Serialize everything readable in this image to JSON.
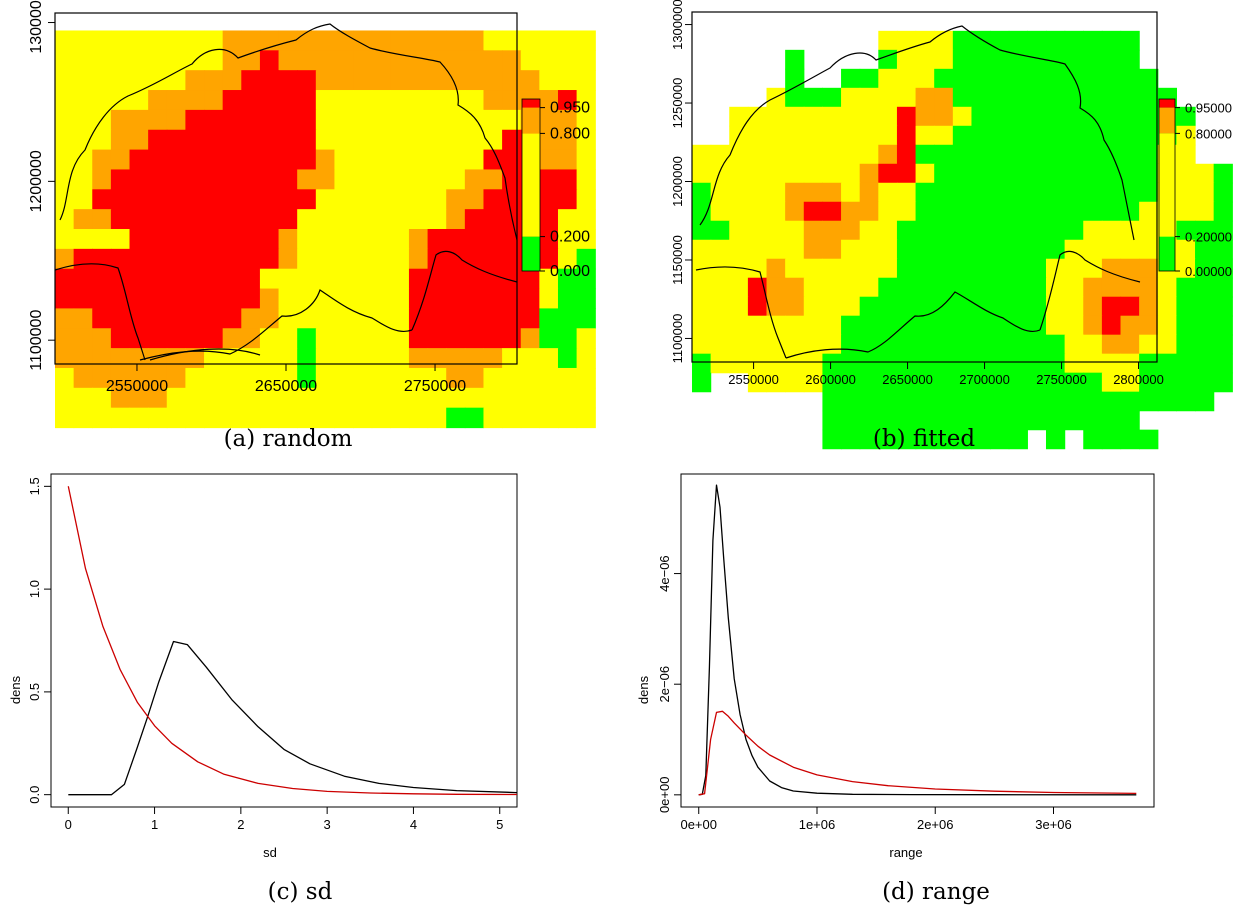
{
  "chart_data": [
    {
      "panel": "a",
      "type": "heatmap",
      "caption": "(a) random",
      "x_ticks": [
        "2550000",
        "2650000",
        "2750000"
      ],
      "y_ticks": [
        "1100000",
        "1200000",
        "1300000"
      ],
      "x_tick_values": [
        2550000,
        2650000,
        2750000
      ],
      "y_tick_values": [
        1100000,
        1200000,
        1300000
      ],
      "xlim": [
        2495000,
        2805000
      ],
      "ylim": [
        1085000,
        1306000
      ],
      "legend": {
        "breaks": [
          0.0,
          0.2,
          0.8,
          0.95,
          1.0
        ],
        "labels": [
          "0.000",
          "0.200",
          "0.800",
          "0.950"
        ],
        "colors": [
          "#00ff00",
          "#ffff00",
          "#ffa500",
          "#ff0000"
        ]
      },
      "grid": {
        "x0": 2495000,
        "y_top": 1295000,
        "cell": 12500,
        "nodata": ".",
        "rows": [
          "YYYYYYYYYOOOOOOOOOOOOOOYYYYYY",
          "YYYYYYYYYOOROOOOOOOOOOOOOYYYY",
          "YYYYYYYOOORRRROOOOOOOOOOOOYYY",
          "YYYYYOOOORRRRRYYYYYYYYYOOOORY",
          "YYYOOOORRRRRRRYYYYYYYYYYYOOOY",
          "YYYOORRRRRRRRRYYYYYYYYYYRROOY",
          "YYOORRRRRRRRRROYYYYYYYYRRROOY",
          "YYORRRRRRRRRROOYYYYYYYOORRRRY",
          "YYRRRRRRRRRRRRYYYYYYYOORRRRRY",
          "YOORRRRRRRRRRYYYYYYYYORRRRRYY",
          "YYYYRRRRRRRROYYYYYYORRRRRRRYY",
          "ORRRRRRRRRRROYYYYYYORRRRRRRYG",
          "RRRRRRRRRRRYYYYYYYYRRRRRRRYGG",
          "RRRRRRRRRRROYYYYYYYRRRRRRRYGG",
          "OORRRRRRRROOYYYYYYYRRRRRRRGGG",
          "OOORRRRRROOYYGYYYYYRRRRRROGGY",
          "OOOOOOOOYYYYYGYYYYYOOOOOYYYGY",
          "YOOOOOOYYYYYYGYYYYYYYOOYYYYYY",
          "YYYOOOYYYYYYYYYYYYYYYYYYYYYYY",
          "YYYYYYYYYYYYYYYYYYYYYGGYYYYYY"
        ]
      }
    },
    {
      "panel": "b",
      "type": "heatmap",
      "caption": "(b) fitted",
      "x_ticks": [
        "2550000",
        "2600000",
        "2650000",
        "2700000",
        "2750000",
        "2800000"
      ],
      "y_ticks": [
        "1100000",
        "1150000",
        "1200000",
        "1250000",
        "1300000"
      ],
      "x_tick_values": [
        2550000,
        2600000,
        2650000,
        2700000,
        2750000,
        2800000
      ],
      "y_tick_values": [
        1100000,
        1150000,
        1200000,
        1250000,
        1300000
      ],
      "xlim": [
        2510000,
        2812000
      ],
      "ylim": [
        1085000,
        1308000
      ],
      "legend": {
        "breaks": [
          0.0,
          0.2,
          0.8,
          0.95,
          1.0
        ],
        "labels": [
          "0.00000",
          "0.20000",
          "0.80000",
          "0.95000"
        ],
        "colors": [
          "#00ff00",
          "#ffff00",
          "#ffa500",
          "#ff0000"
        ]
      },
      "grid": {
        "x0": 2510000,
        "y_top": 1296000,
        "cell": 12100,
        "nodata": ".",
        "rows": [
          "..........YYYYGGGGGGGGGG.....",
          ".....G....GYYYGGGGGGGGGG.....",
          ".....G..GGYYYGGGGGGGGGGGG....",
          "....YGGGYYYYOOGGGGGGGGGGGG...",
          "..YYYYYYYYYROOYGGGGGGGGGGGG..",
          "..YYYYYYYYYRYYGGGGGGGGGGGGY..",
          "YYYYYYYYYYORGGGGGGGGGGGGGYY..",
          "YYYYYYYYYORRYGGGGGGGGGGGGYYYG",
          "GYYYYOOOYOYYGGGGGGGGGGGGGYYYG",
          "GYYYYORROOYYGGGGGGGGGGGGYYYYG",
          "GGYYYYOOOYYGGGGGGGGGGYYYYYGGG",
          "YYYYYYOOYYYGGGGGGGGGYYYYYYYGG",
          "YYYYOYYYYYYGGGGGGGGYYYOOOYYGG",
          "YYYROOYYYYGGGGGGGGGYYOOOOYGGG",
          "YYYROOYYYGGGGGGGGGGYYORROYGGG",
          "YYYYYYYYGGGGGGGGGGGYYOROOYGGG",
          "YYYYYYYYGGGGGGGGGGGGYYOOYYGGG",
          "GYYYYYYGGGGGGGGGGGGGYYYYGGGGG",
          "G..YYYYGGGGGGGGGGGGGGGYYGGGGG",
          ".......GGGGGGGGGGGGGGGGGGGGG.",
          ".......GGGGGGGGGGGGGGGGG.....",
          ".......GGGGGGGGGGG.G.GGGG...."
        ]
      }
    },
    {
      "panel": "c",
      "type": "line",
      "caption": "(c) sd",
      "xlabel": "sd",
      "ylabel": "dens",
      "xlim": [
        -0.2,
        5.2
      ],
      "ylim": [
        -0.06,
        1.56
      ],
      "x_ticks": [
        0,
        1,
        2,
        3,
        4,
        5
      ],
      "y_ticks": [
        0.0,
        0.5,
        1.0,
        1.5
      ],
      "x_tick_labels": [
        "0",
        "1",
        "2",
        "3",
        "4",
        "5"
      ],
      "y_tick_labels": [
        "0.0",
        "0.5",
        "1.0",
        "1.5"
      ],
      "series": [
        {
          "color": "#000000",
          "x": [
            0,
            0.5,
            0.65,
            0.8,
            0.92,
            1.05,
            1.22,
            1.38,
            1.6,
            1.9,
            2.2,
            2.5,
            2.8,
            3.2,
            3.6,
            4.0,
            4.5,
            5.2
          ],
          "y": [
            0,
            0.0,
            0.05,
            0.23,
            0.38,
            0.55,
            0.745,
            0.73,
            0.62,
            0.46,
            0.33,
            0.22,
            0.15,
            0.09,
            0.055,
            0.035,
            0.02,
            0.01
          ]
        },
        {
          "color": "#cc0000",
          "x": [
            0,
            0.2,
            0.4,
            0.6,
            0.8,
            1.0,
            1.2,
            1.5,
            1.8,
            2.2,
            2.6,
            3.0,
            3.5,
            4.0,
            4.5,
            5.2
          ],
          "y": [
            1.5,
            1.1,
            0.82,
            0.61,
            0.45,
            0.335,
            0.25,
            0.16,
            0.1,
            0.055,
            0.03,
            0.016,
            0.008,
            0.004,
            0.002,
            0.001
          ]
        }
      ]
    },
    {
      "panel": "d",
      "type": "line",
      "caption": "(d) range",
      "xlabel": "range",
      "ylabel": "dens",
      "xlim": [
        -150000,
        3850000
      ],
      "ylim": [
        -2.2e-07,
        5.8e-06
      ],
      "x_ticks": [
        0,
        1000000,
        2000000,
        3000000
      ],
      "y_ticks": [
        0,
        2e-06,
        4e-06
      ],
      "x_tick_labels": [
        "0e+00",
        "1e+06",
        "2e+06",
        "3e+06"
      ],
      "y_tick_labels": [
        "0e+00",
        "2e−06",
        "4e−06"
      ],
      "series": [
        {
          "color": "#000000",
          "x": [
            0,
            30000,
            60000,
            90000,
            120000,
            150000,
            180000,
            210000,
            250000,
            300000,
            350000,
            400000,
            450000,
            500000,
            600000,
            700000,
            800000,
            1000000,
            1300000,
            1800000,
            2500000,
            3700000
          ],
          "y": [
            0,
            1e-08,
            3.5e-07,
            2.3e-06,
            4.6e-06,
            5.6e-06,
            5.2e-06,
            4.3e-06,
            3.2e-06,
            2.1e-06,
            1.45e-06,
            1e-06,
            7.1e-07,
            5e-07,
            2.5e-07,
            1.3e-07,
            7e-08,
            3e-08,
            1e-08,
            5e-09,
            2e-09,
            1e-09
          ]
        },
        {
          "color": "#cc0000",
          "x": [
            0,
            50000,
            100000,
            150000,
            200000,
            250000,
            300000,
            400000,
            500000,
            600000,
            800000,
            1000000,
            1300000,
            1600000,
            2000000,
            2500000,
            3000000,
            3700000
          ],
          "y": [
            0,
            2e-08,
            1e-06,
            1.49e-06,
            1.51e-06,
            1.42e-06,
            1.3e-06,
            1.08e-06,
            8.8e-07,
            7.2e-07,
            5e-07,
            3.6e-07,
            2.4e-07,
            1.65e-07,
            1.05e-07,
            6.5e-08,
            4.2e-08,
            2.5e-08
          ]
        }
      ]
    }
  ]
}
